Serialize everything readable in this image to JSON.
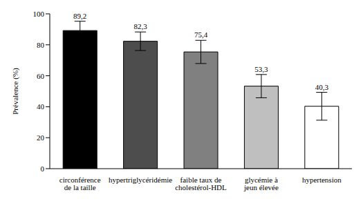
{
  "chart_data": {
    "type": "bar",
    "categories": [
      "circonférence de la taille",
      "hypertriglycéridémie",
      "faible taux de cholestérol-HDL",
      "glycémie à jeun élevée",
      "hypertension"
    ],
    "values": [
      89.2,
      82.3,
      75.4,
      53.3,
      40.3
    ],
    "value_labels": [
      "89,2",
      "82,3",
      "75,4",
      "53,3",
      "40,3"
    ],
    "errors": [
      6,
      6,
      7.5,
      7.5,
      9
    ],
    "colors": [
      "#000000",
      "#4d4d4d",
      "#808080",
      "#bfbfbf",
      "#ffffff"
    ],
    "y_label": "Prévalence (%)",
    "ylim": [
      0,
      100
    ],
    "yticks": [
      0,
      20,
      40,
      60,
      80,
      100
    ],
    "grid": false,
    "data_labels": true
  }
}
